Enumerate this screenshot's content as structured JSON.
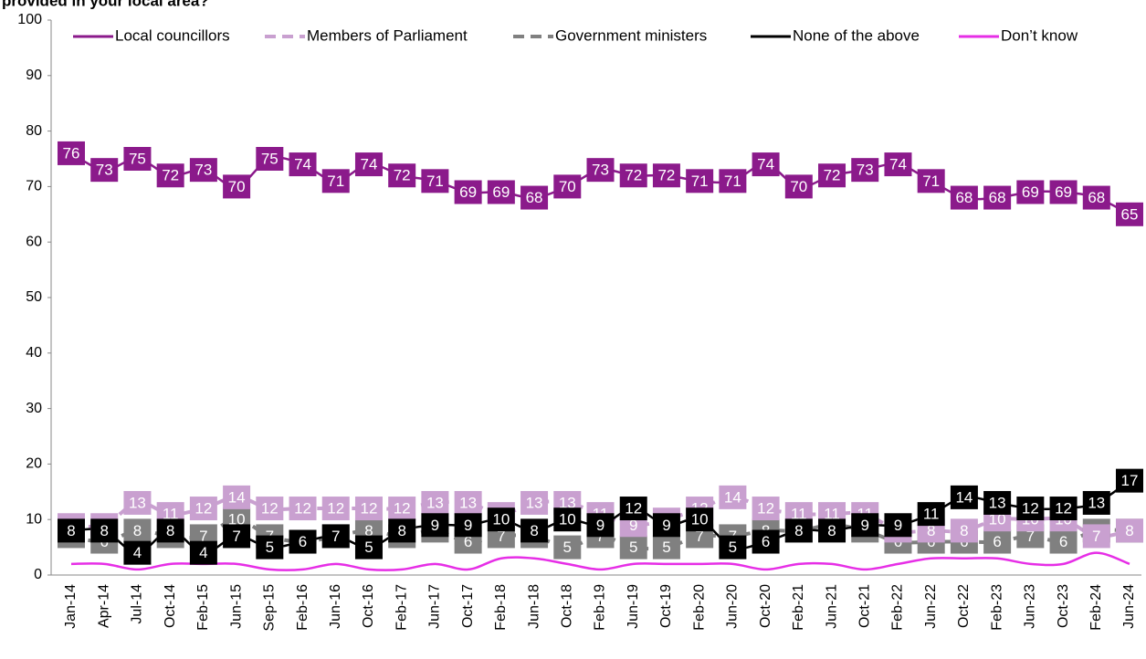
{
  "chart_data": {
    "type": "line",
    "title": "provided in your local area?",
    "categories": [
      "Jan-14",
      "Apr-14",
      "Jul-14",
      "Oct-14",
      "Feb-15",
      "Jun-15",
      "Sep-15",
      "Feb-16",
      "Jun-16",
      "Oct-16",
      "Feb-17",
      "Jun-17",
      "Oct-17",
      "Feb-18",
      "Jun-18",
      "Oct-18",
      "Feb-19",
      "Jun-19",
      "Oct-19",
      "Feb-20",
      "Jun-20",
      "Oct-20",
      "Feb-21",
      "Jun-21",
      "Oct-21",
      "Feb-22",
      "Jun-22",
      "Oct-22",
      "Feb-23",
      "Jun-23",
      "Oct-23",
      "Feb-24",
      "Jun-24"
    ],
    "series": [
      {
        "name": "Local councillors",
        "color": "#8b1a8b",
        "dashed": false,
        "labels": true,
        "values": [
          76,
          73,
          75,
          72,
          73,
          70,
          75,
          74,
          71,
          74,
          72,
          71,
          69,
          69,
          68,
          70,
          73,
          72,
          72,
          71,
          71,
          74,
          70,
          72,
          73,
          74,
          71,
          68,
          68,
          69,
          69,
          68,
          65
        ]
      },
      {
        "name": "Members of Parliament",
        "color": "#c9a0d0",
        "dashed": true,
        "labels": true,
        "values": [
          9,
          9,
          13,
          11,
          12,
          14,
          12,
          12,
          12,
          12,
          12,
          13,
          13,
          11,
          13,
          13,
          11,
          9,
          10,
          12,
          14,
          12,
          11,
          11,
          11,
          8,
          8,
          8,
          10,
          10,
          10,
          7,
          8
        ]
      },
      {
        "name": "Government ministers",
        "color": "#808080",
        "dashed": true,
        "labels": true,
        "values": [
          7,
          6,
          8,
          7,
          7,
          10,
          7,
          6,
          7,
          8,
          7,
          8,
          6,
          7,
          7,
          5,
          7,
          5,
          5,
          7,
          7,
          8,
          8,
          9,
          8,
          6,
          6,
          6,
          6,
          7,
          6,
          8,
          8
        ]
      },
      {
        "name": "None of the above",
        "color": "#000000",
        "dashed": false,
        "labels": true,
        "values": [
          8,
          8,
          4,
          8,
          4,
          7,
          5,
          6,
          7,
          5,
          8,
          9,
          9,
          10,
          8,
          10,
          9,
          12,
          9,
          10,
          5,
          6,
          8,
          8,
          9,
          9,
          11,
          14,
          13,
          12,
          12,
          13,
          17
        ]
      },
      {
        "name": "Don’t know",
        "color": "#e62ee6",
        "dashed": false,
        "labels": false,
        "values": [
          2,
          2,
          1,
          2,
          2,
          2,
          1,
          1,
          2,
          1,
          1,
          2,
          1,
          3,
          3,
          2,
          1,
          2,
          2,
          2,
          2,
          1,
          2,
          2,
          1,
          2,
          3,
          3,
          3,
          2,
          2,
          4,
          2
        ]
      }
    ],
    "ylim": [
      0,
      100
    ],
    "yticks": [
      0,
      10,
      20,
      30,
      40,
      50,
      60,
      70,
      80,
      90,
      100
    ],
    "grid": false,
    "legend": "top"
  }
}
